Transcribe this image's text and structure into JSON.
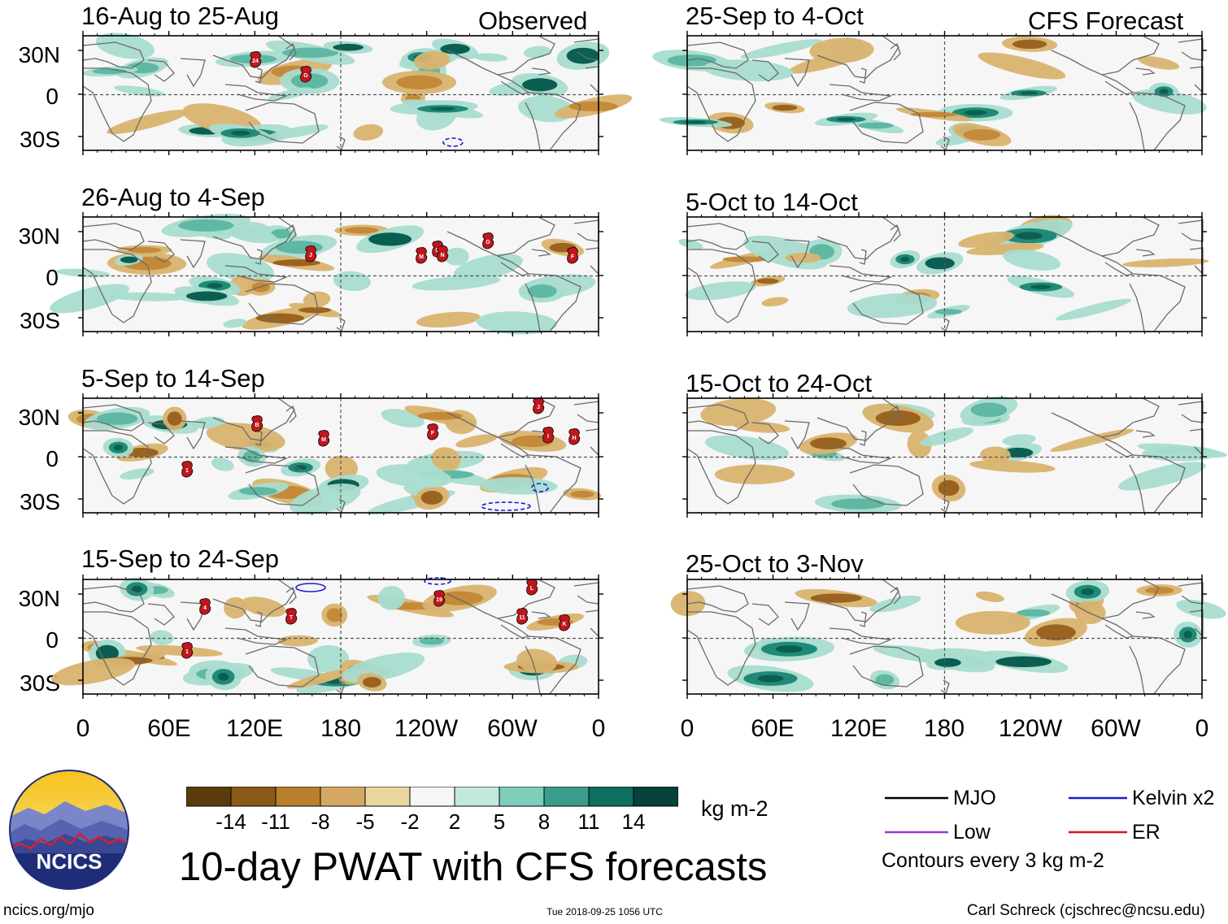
{
  "headers": {
    "observed": "Observed",
    "forecast": "CFS Forecast"
  },
  "observed_panels": [
    {
      "title": "16-Aug to 25-Aug"
    },
    {
      "title": "26-Aug to 4-Sep"
    },
    {
      "title": "5-Sep to 14-Sep"
    },
    {
      "title": "15-Sep to 24-Sep"
    }
  ],
  "forecast_panels": [
    {
      "title": "25-Sep to 4-Oct"
    },
    {
      "title": "5-Oct to 14-Oct"
    },
    {
      "title": "15-Oct to 24-Oct"
    },
    {
      "title": "25-Oct to 3-Nov"
    }
  ],
  "lat_labels": [
    "30N",
    "0",
    "30S"
  ],
  "lon_labels": [
    "0",
    "60E",
    "120E",
    "180",
    "120W",
    "60W",
    "0"
  ],
  "colorbar": {
    "labels": [
      "-14",
      "-11",
      "-8",
      "-5",
      "-2",
      "2",
      "5",
      "8",
      "11",
      "14"
    ],
    "colors": [
      "#5a3b0d",
      "#8a5a18",
      "#b97f2c",
      "#d4a862",
      "#ecd69f",
      "#f9f3dc",
      "#f6f6f6",
      "#c3e8de",
      "#7fcdbb",
      "#3a9c8b",
      "#0d6f60",
      "#06423a"
    ],
    "units": "kg m-2"
  },
  "legend": {
    "mjo": "MJO",
    "kelvin": "Kelvin x2",
    "low": "Low",
    "er": "ER",
    "contours_note": "Contours every 3 kg m-2",
    "mjo_color": "#000000",
    "kelvin_color": "#1a1adc",
    "low_color": "#9b37d8",
    "er_color": "#e01414"
  },
  "main_title": "10-day PWAT with CFS forecasts",
  "logo_text": "NCICS",
  "footer": {
    "site": "ncics.org/mjo",
    "timestamp": "Tue 2018-09-25 1056 UTC",
    "author": "Carl Schreck (cjschrec@ncsu.edu)"
  },
  "storm_markers": [
    [
      "24",
      "G"
    ],
    [
      "J",
      "M",
      "O",
      "N",
      "G",
      "F"
    ],
    [
      "B",
      "M",
      "F",
      "J",
      "I",
      "H",
      "1"
    ],
    [
      "4",
      "T",
      "19",
      "L",
      "11",
      "K",
      "1"
    ]
  ]
}
